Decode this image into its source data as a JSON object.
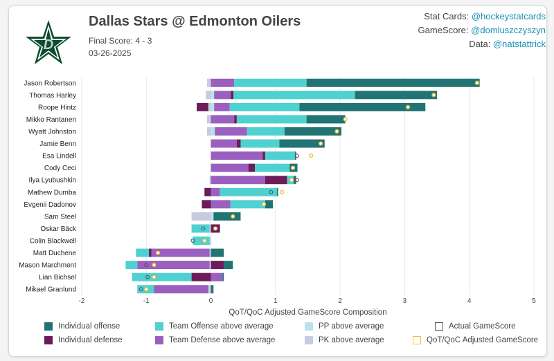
{
  "header": {
    "title": "Dallas Stars @ Edmonton Oilers",
    "final_score": "Final Score: 4 - 3",
    "date": "03-26-2025"
  },
  "credits": [
    {
      "label": "Stat Cards:",
      "handle": "@hockeystatcards"
    },
    {
      "label": "GameScore:",
      "handle": "@domluszczyszyn"
    },
    {
      "label": "Data:",
      "handle": "@natstattrick"
    }
  ],
  "colors": {
    "ind_off": "#227474",
    "ind_def": "#6b1d5a",
    "team_off": "#4fd1d1",
    "team_def": "#9b5fc0",
    "pp": "#b9e3ea",
    "pk": "#c7cbe0",
    "actual": "#555555",
    "adjusted": "#f2c12e"
  },
  "chart_data": {
    "type": "bar",
    "orientation": "horizontal-stacked",
    "xlabel": "QoT/QoC Adjusted GameScore Composition",
    "xlim": [
      -2,
      5
    ],
    "xticks": [
      -2,
      -1,
      0,
      1,
      2,
      3,
      4,
      5
    ],
    "grid": true,
    "series_names": {
      "ind_off": "Individual offense",
      "ind_def": "Individual defense",
      "team_off": "Team Offense above average",
      "team_def": "Team Defense above average",
      "pp": "PP above average",
      "pk": "PK above average",
      "actual": "Actual GameScore",
      "adjusted": "QoT/QoC Adjusted GameScore"
    },
    "players": [
      {
        "name": "Jason Robertson",
        "pk": -0.06,
        "pp": 0,
        "team_def": 0.36,
        "ind_def": 0,
        "team_off": 1.12,
        "ind_off": 2.68,
        "actual": 4.12,
        "adjusted": 4.12
      },
      {
        "name": "Thomas Harley",
        "pk": -0.08,
        "pp": 0.05,
        "team_def": 0.26,
        "ind_def": 0.04,
        "team_off": 1.88,
        "ind_off": 1.27,
        "actual": 3.45,
        "adjusted": 3.45
      },
      {
        "name": "Roope Hintz",
        "pk": -0.04,
        "pp": 0.05,
        "team_def": 0.24,
        "ind_def": -0.18,
        "team_off": 1.08,
        "ind_off": 1.95,
        "actual": 3.05,
        "adjusted": 3.05
      },
      {
        "name": "Mikko Rantanen",
        "pk": -0.06,
        "pp": 0,
        "team_def": 0.36,
        "ind_def": 0.04,
        "team_off": 1.08,
        "ind_off": 0.6,
        "actual": 2.08,
        "adjusted": 2.08
      },
      {
        "name": "Wyatt Johnston",
        "pk": -0.06,
        "pp": 0.06,
        "team_def": 0.5,
        "ind_def": 0,
        "team_off": 0.58,
        "ind_off": 0.88,
        "actual": 1.95,
        "adjusted": 1.95
      },
      {
        "name": "Jamie Benn",
        "pk": 0,
        "pp": 0,
        "team_def": 0.4,
        "ind_def": 0.06,
        "team_off": 0.6,
        "ind_off": 0.7,
        "actual": 1.7,
        "adjusted": 1.7
      },
      {
        "name": "Esa Lindell",
        "pk": 0,
        "pp": 0,
        "team_def": 0.8,
        "ind_def": 0.04,
        "team_off": 0.46,
        "ind_off": 0.02,
        "actual": 1.33,
        "adjusted": 1.55
      },
      {
        "name": "Cody Ceci",
        "pk": 0,
        "pp": 0,
        "team_def": 0.58,
        "ind_def": 0.1,
        "team_off": 0.54,
        "ind_off": 0.12,
        "actual": 1.25,
        "adjusted": 1.27
      },
      {
        "name": "Ilya Lyubushkin",
        "pk": -0.02,
        "pp": 0,
        "team_def": 0.84,
        "ind_def": 0.34,
        "team_off": 0.1,
        "ind_off": 0.04,
        "actual": 1.33,
        "adjusted": 1.25
      },
      {
        "name": "Mathew Dumba",
        "pk": 0,
        "pp": 0,
        "team_def": 0.14,
        "ind_def": -0.1,
        "team_off": 0.88,
        "ind_off": 0.02,
        "actual": 0.93,
        "adjusted": 1.1
      },
      {
        "name": "Evgenii Dadonov",
        "pk": 0,
        "pp": 0,
        "team_def": 0.3,
        "ind_def": -0.14,
        "team_off": 0.54,
        "ind_off": 0.12,
        "actual": 0.82,
        "adjusted": 0.82
      },
      {
        "name": "Sam Steel",
        "pk": -0.3,
        "pp": 0.04,
        "team_def": 0,
        "ind_def": 0,
        "team_off": 0,
        "ind_off": 0.42,
        "actual": 0.34,
        "adjusted": 0.34
      },
      {
        "name": "Oskar Bäck",
        "pk": -0.02,
        "pp": 0,
        "team_def": 0,
        "ind_def": 0.14,
        "team_off": -0.28,
        "ind_off": 0,
        "actual": -0.12,
        "adjusted": 0.07
      },
      {
        "name": "Colin Blackwell",
        "pk": -0.02,
        "pp": 0,
        "team_def": 0,
        "ind_def": 0,
        "team_off": -0.26,
        "ind_off": 0,
        "actual": -0.28,
        "adjusted": -0.1
      },
      {
        "name": "Matt Duchene",
        "pk": -0.02,
        "pp": 0,
        "team_def": -0.9,
        "ind_def": -0.04,
        "team_off": -0.2,
        "ind_off": 0.2,
        "actual": -0.82,
        "adjusted": -0.82
      },
      {
        "name": "Mason Marchment",
        "pk": -0.02,
        "pp": 0,
        "team_def": -1.12,
        "ind_def": 0.2,
        "team_off": -0.18,
        "ind_off": 0.14,
        "actual": -1.0,
        "adjusted": -0.88
      },
      {
        "name": "Lian Bichsel",
        "pk": 0,
        "pp": 0,
        "team_def": 0.18,
        "ind_def": -0.3,
        "team_off": -0.92,
        "ind_off": 0.02,
        "actual": -0.98,
        "adjusted": -0.88
      },
      {
        "name": "Mikael Granlund",
        "pk": -0.04,
        "pp": 0,
        "team_def": -0.84,
        "ind_def": 0,
        "team_off": -0.26,
        "ind_off": 0.04,
        "actual": -1.08,
        "adjusted": -1.0
      }
    ]
  }
}
